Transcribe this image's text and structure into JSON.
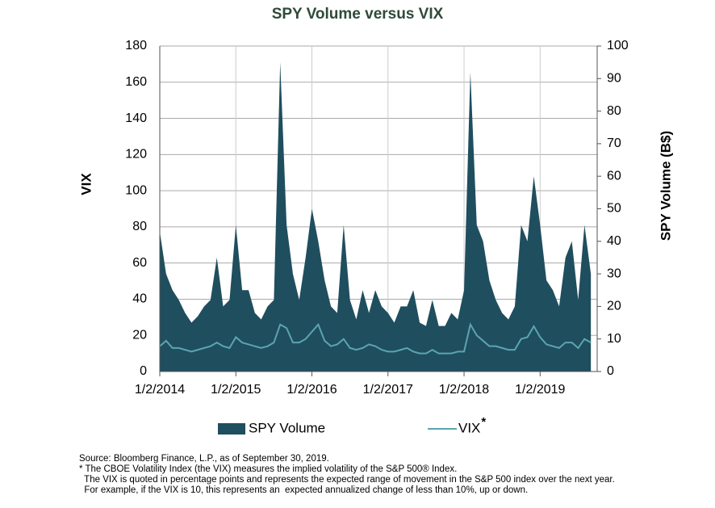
{
  "chart_data": {
    "type": "area",
    "title": "SPY Volume versus VIX",
    "y_label": "VIX",
    "y2_label": "SPY Volume (B$)",
    "x": [
      2014,
      2014.083,
      2014.167,
      2014.25,
      2014.333,
      2014.417,
      2014.5,
      2014.583,
      2014.667,
      2014.75,
      2014.833,
      2014.917,
      2015,
      2015.083,
      2015.167,
      2015.25,
      2015.333,
      2015.417,
      2015.5,
      2015.583,
      2015.667,
      2015.75,
      2015.833,
      2015.917,
      2016,
      2016.083,
      2016.167,
      2016.25,
      2016.333,
      2016.417,
      2016.5,
      2016.583,
      2016.667,
      2016.75,
      2016.833,
      2016.917,
      2017,
      2017.083,
      2017.167,
      2017.25,
      2017.333,
      2017.417,
      2017.5,
      2017.583,
      2017.667,
      2017.75,
      2017.833,
      2017.917,
      2018,
      2018.083,
      2018.167,
      2018.25,
      2018.333,
      2018.417,
      2018.5,
      2018.583,
      2018.667,
      2018.75,
      2018.833,
      2018.917,
      2019,
      2019.083,
      2019.167,
      2019.25,
      2019.333,
      2019.417,
      2019.5,
      2019.583,
      2019.667
    ],
    "series": [
      {
        "name": "SPY Volume",
        "color": "#1f4e5f",
        "axis": "y2",
        "mark": "area",
        "values": [
          43,
          30,
          25,
          22,
          18,
          15,
          17,
          20,
          22,
          35,
          20,
          22,
          45,
          25,
          25,
          18,
          16,
          20,
          22,
          95,
          45,
          30,
          22,
          35,
          50,
          40,
          28,
          20,
          18,
          45,
          22,
          16,
          25,
          18,
          25,
          20,
          18,
          15,
          20,
          20,
          25,
          15,
          14,
          22,
          14,
          14,
          18,
          16,
          25,
          92,
          45,
          40,
          28,
          22,
          18,
          16,
          20,
          45,
          40,
          60,
          45,
          28,
          25,
          20,
          35,
          40,
          22,
          45,
          30
        ]
      },
      {
        "name": "VIX",
        "color": "#5ba5b0",
        "mark": "line",
        "values": [
          14,
          17,
          13,
          13,
          12,
          11,
          12,
          13,
          14,
          16,
          14,
          13,
          19,
          16,
          15,
          14,
          13,
          14,
          16,
          26,
          24,
          16,
          16,
          18,
          22,
          26,
          17,
          14,
          15,
          18,
          13,
          12,
          13,
          15,
          14,
          12,
          11,
          11,
          12,
          13,
          11,
          10,
          10,
          12,
          10,
          10,
          10,
          11,
          11,
          26,
          20,
          17,
          14,
          14,
          13,
          12,
          12,
          18,
          19,
          25,
          19,
          15,
          14,
          13,
          16,
          16,
          13,
          18,
          16
        ]
      }
    ],
    "legend_note": "*",
    "xlim": [
      2014,
      2019.75
    ],
    "xticks": [
      {
        "value": 2014,
        "label": "1/2/2014"
      },
      {
        "value": 2015,
        "label": "1/2/2015"
      },
      {
        "value": 2016,
        "label": "1/2/2016"
      },
      {
        "value": 2017,
        "label": "1/2/2017"
      },
      {
        "value": 2018,
        "label": "1/2/2018"
      },
      {
        "value": 2019,
        "label": "1/2/2019"
      }
    ],
    "ylim": [
      0,
      180
    ],
    "yticks": [
      0,
      20,
      40,
      60,
      80,
      100,
      120,
      140,
      160,
      180
    ],
    "y2lim": [
      0,
      100
    ],
    "y2ticks": [
      0,
      10,
      20,
      30,
      40,
      50,
      60,
      70,
      80,
      90,
      100
    ],
    "grid": true,
    "footnotes": [
      "Source: Bloomberg Finance, L.P., as of September 30, 2019.",
      "* The CBOE Volatility Index (the VIX) measures the implied volatility of the S&P 500® Index.",
      "  The VIX is quoted in percentage points and represents the expected range of movement in the S&P 500 index over the next year.",
      "  For example, if the VIX is 10, this represents an  expected annualized change of less than 10%, up or down."
    ]
  }
}
